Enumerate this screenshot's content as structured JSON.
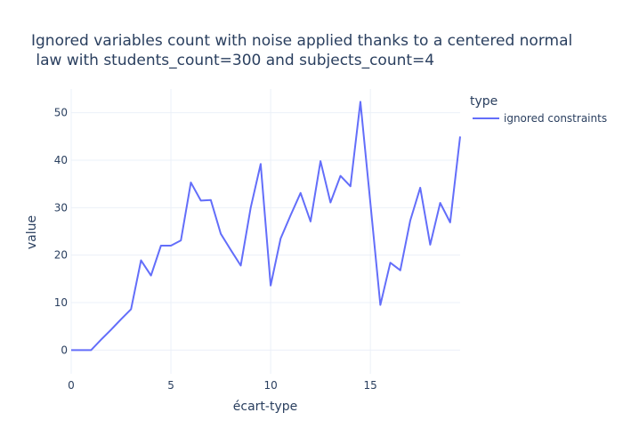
{
  "chart_data": {
    "type": "line",
    "title_line1": "Ignored variables count with noise applied thanks to a centered normal",
    "title_line2": " law with students_count=300 and subjects_count=4",
    "xlabel": "écart-type",
    "ylabel": "value",
    "xlim": [
      0,
      19.5
    ],
    "ylim": [
      -5,
      55
    ],
    "x_ticks": [
      0,
      5,
      10,
      15
    ],
    "y_ticks": [
      0,
      10,
      20,
      30,
      40,
      50
    ],
    "grid": true,
    "legend_position": "top-right",
    "legend_title": "type",
    "colors": {
      "line": "#636efa",
      "grid": "#ebf0f8",
      "zeroline": "#ebf0f8",
      "text": "#2a3f5f"
    },
    "series": [
      {
        "name": "ignored constraints",
        "x": [
          0,
          0.5,
          1,
          1.5,
          2,
          2.5,
          3,
          3.5,
          4,
          4.5,
          5,
          5.5,
          6,
          6.5,
          7,
          7.5,
          8,
          8.5,
          9,
          9.5,
          10,
          10.5,
          11,
          11.5,
          12,
          12.5,
          13,
          13.5,
          14,
          14.5,
          15,
          15.5,
          16,
          16.5,
          17,
          17.5,
          18,
          18.5,
          19,
          19.5
        ],
        "values": [
          0,
          0,
          0,
          2.2,
          4.3,
          6.5,
          8.6,
          18.9,
          15.7,
          22,
          22,
          23.1,
          35.3,
          31.5,
          31.6,
          24.5,
          21.1,
          17.8,
          30,
          39.2,
          13.6,
          23.5,
          28.4,
          33.1,
          27.1,
          39.8,
          31.1,
          36.7,
          34.5,
          52.3,
          31,
          9.5,
          18.4,
          16.8,
          27.3,
          34.2,
          22.2,
          31,
          26.9,
          45
        ]
      }
    ]
  }
}
